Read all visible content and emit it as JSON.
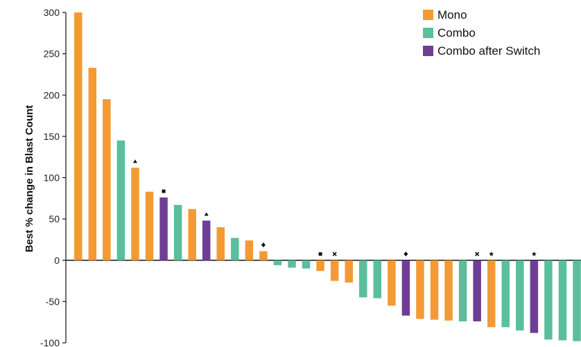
{
  "chart_data": {
    "type": "bar",
    "title": "",
    "xlabel": "",
    "ylabel": "Best % change in Blast Count",
    "ylim": [
      -100,
      300
    ],
    "yticks": [
      300,
      250,
      200,
      150,
      100,
      50,
      0,
      -50,
      -100
    ],
    "grid": false,
    "legend_position": "top-right",
    "colors": {
      "Mono": "#F39A34",
      "Combo": "#5BBE9C",
      "Combo after Switch": "#6E3E96"
    },
    "legend": [
      {
        "name": "Mono",
        "color": "#F39A34"
      },
      {
        "name": "Combo",
        "color": "#5BBE9C"
      },
      {
        "name": "Combo after Switch",
        "color": "#6E3E96"
      }
    ],
    "bars": [
      {
        "value": 300,
        "group": "Mono",
        "marker": ""
      },
      {
        "value": 233,
        "group": "Mono",
        "marker": ""
      },
      {
        "value": 195,
        "group": "Mono",
        "marker": ""
      },
      {
        "value": 145,
        "group": "Combo",
        "marker": ""
      },
      {
        "value": 112,
        "group": "Mono",
        "marker": "triangle"
      },
      {
        "value": 83,
        "group": "Mono",
        "marker": ""
      },
      {
        "value": 76,
        "group": "Combo after Switch",
        "marker": "square"
      },
      {
        "value": 67,
        "group": "Combo",
        "marker": ""
      },
      {
        "value": 62,
        "group": "Mono",
        "marker": ""
      },
      {
        "value": 48,
        "group": "Combo after Switch",
        "marker": "triangle"
      },
      {
        "value": 40,
        "group": "Mono",
        "marker": ""
      },
      {
        "value": 27,
        "group": "Combo",
        "marker": ""
      },
      {
        "value": 24,
        "group": "Mono",
        "marker": ""
      },
      {
        "value": 11,
        "group": "Mono",
        "marker": "diamond"
      },
      {
        "value": -6,
        "group": "Combo",
        "marker": ""
      },
      {
        "value": -9,
        "group": "Combo",
        "marker": ""
      },
      {
        "value": -10,
        "group": "Combo",
        "marker": ""
      },
      {
        "value": -13,
        "group": "Mono",
        "marker": "square"
      },
      {
        "value": -25,
        "group": "Mono",
        "marker": "cross"
      },
      {
        "value": -27,
        "group": "Mono",
        "marker": ""
      },
      {
        "value": -45,
        "group": "Combo",
        "marker": ""
      },
      {
        "value": -46,
        "group": "Combo",
        "marker": ""
      },
      {
        "value": -55,
        "group": "Mono",
        "marker": ""
      },
      {
        "value": -67,
        "group": "Combo after Switch",
        "marker": "diamond"
      },
      {
        "value": -71,
        "group": "Mono",
        "marker": ""
      },
      {
        "value": -72,
        "group": "Mono",
        "marker": ""
      },
      {
        "value": -73,
        "group": "Mono",
        "marker": ""
      },
      {
        "value": -74,
        "group": "Combo",
        "marker": ""
      },
      {
        "value": -74,
        "group": "Combo after Switch",
        "marker": "cross"
      },
      {
        "value": -81,
        "group": "Mono",
        "marker": "star"
      },
      {
        "value": -81,
        "group": "Combo",
        "marker": ""
      },
      {
        "value": -85,
        "group": "Combo",
        "marker": ""
      },
      {
        "value": -88,
        "group": "Combo after Switch",
        "marker": "star"
      },
      {
        "value": -96,
        "group": "Combo",
        "marker": ""
      },
      {
        "value": -97,
        "group": "Combo",
        "marker": ""
      },
      {
        "value": -98,
        "group": "Combo",
        "marker": ""
      },
      {
        "value": -99,
        "group": "Combo",
        "marker": ""
      }
    ]
  }
}
